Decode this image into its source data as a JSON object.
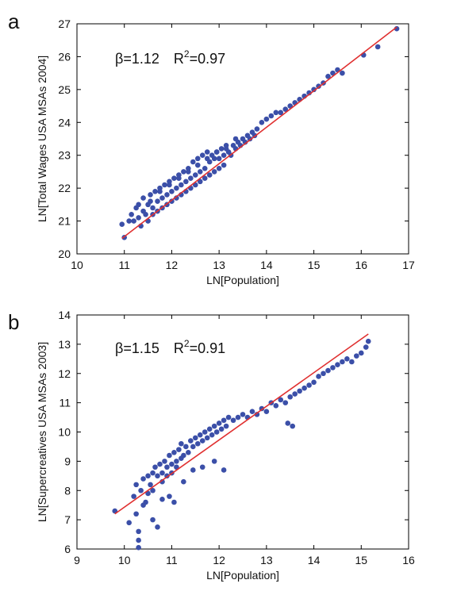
{
  "chart_data": [
    {
      "panel_label": "a",
      "type": "scatter",
      "xlabel": "LN[Population]",
      "ylabel": "LN[Total Wages USA MSAs 2004]",
      "xlim": [
        10,
        17
      ],
      "ylim": [
        20,
        27
      ],
      "xticks": [
        "10",
        "11",
        "12",
        "13",
        "14",
        "15",
        "16",
        "17"
      ],
      "yticks": [
        "20",
        "21",
        "22",
        "23",
        "24",
        "25",
        "26",
        "27"
      ],
      "annotation": {
        "beta": "β=1.12",
        "r2_prefix": "R",
        "r2_sup": "2",
        "r2_value": "=0.97"
      },
      "point_color": "#3b4fa8",
      "fit_color": "#e03030",
      "fit": {
        "x": [
          10.95,
          16.75
        ],
        "y": [
          20.47,
          26.9
        ]
      },
      "grid": false,
      "x": [
        10.95,
        11.0,
        11.1,
        11.15,
        11.2,
        11.25,
        11.3,
        11.3,
        11.35,
        11.4,
        11.4,
        11.45,
        11.5,
        11.5,
        11.55,
        11.6,
        11.6,
        11.65,
        11.7,
        11.7,
        11.75,
        11.8,
        11.8,
        11.85,
        11.9,
        11.9,
        11.95,
        12.0,
        12.0,
        12.05,
        12.1,
        12.1,
        12.15,
        12.2,
        12.2,
        12.25,
        12.3,
        12.3,
        12.35,
        12.4,
        12.4,
        12.45,
        12.5,
        12.5,
        12.55,
        12.6,
        12.6,
        12.65,
        12.7,
        12.7,
        12.75,
        12.8,
        12.8,
        12.85,
        12.9,
        12.9,
        12.95,
        13.0,
        13.0,
        13.05,
        13.1,
        13.1,
        13.15,
        13.2,
        13.25,
        13.3,
        13.35,
        13.4,
        13.45,
        13.5,
        13.55,
        13.6,
        13.65,
        13.7,
        13.75,
        13.8,
        13.9,
        14.0,
        14.1,
        14.2,
        14.3,
        14.4,
        14.5,
        14.6,
        14.7,
        14.8,
        14.9,
        15.0,
        15.1,
        15.2,
        15.3,
        15.4,
        15.5,
        15.6,
        16.05,
        16.35,
        16.75,
        11.55,
        11.75,
        11.95,
        12.15,
        12.35,
        12.55,
        12.75,
        12.95,
        13.15,
        13.35
      ],
      "y": [
        20.9,
        20.5,
        21.0,
        21.2,
        21.0,
        21.4,
        21.1,
        21.5,
        20.85,
        21.3,
        21.7,
        21.2,
        21.5,
        21.0,
        21.8,
        21.4,
        21.2,
        21.9,
        21.6,
        21.3,
        22.0,
        21.7,
        21.4,
        22.1,
        21.8,
        21.5,
        22.2,
        21.9,
        21.6,
        22.3,
        22.0,
        21.7,
        22.4,
        22.1,
        21.8,
        22.5,
        22.2,
        21.9,
        22.6,
        22.3,
        22.0,
        22.8,
        22.4,
        22.1,
        22.9,
        22.5,
        22.2,
        23.0,
        22.6,
        22.3,
        23.1,
        22.8,
        22.4,
        23.0,
        22.9,
        22.5,
        23.1,
        22.9,
        22.6,
        23.2,
        23.0,
        22.7,
        23.2,
        23.1,
        23.0,
        23.3,
        23.2,
        23.4,
        23.3,
        23.5,
        23.4,
        23.6,
        23.5,
        23.7,
        23.6,
        23.8,
        24.0,
        24.1,
        24.2,
        24.3,
        24.3,
        24.4,
        24.5,
        24.6,
        24.7,
        24.8,
        24.9,
        25.0,
        25.1,
        25.2,
        25.4,
        25.5,
        25.6,
        25.5,
        26.05,
        26.3,
        26.85,
        21.6,
        21.9,
        22.1,
        22.3,
        22.5,
        22.7,
        22.9,
        23.1,
        23.3,
        23.5
      ]
    },
    {
      "panel_label": "b",
      "type": "scatter",
      "xlabel": "LN[Population]",
      "ylabel": "LN[Supercreatives USA MSAs 2003]",
      "xlim": [
        9,
        16
      ],
      "ylim": [
        6,
        14
      ],
      "xticks": [
        "9",
        "10",
        "11",
        "12",
        "13",
        "14",
        "15",
        "16"
      ],
      "yticks": [
        "6",
        "7",
        "8",
        "9",
        "10",
        "11",
        "12",
        "13",
        "14"
      ],
      "annotation": {
        "beta": "β=1.15",
        "r2_prefix": "R",
        "r2_sup": "2",
        "r2_value": "=0.91"
      },
      "point_color": "#3b4fa8",
      "fit_color": "#e03030",
      "fit": {
        "x": [
          9.8,
          15.15
        ],
        "y": [
          7.2,
          13.35
        ]
      },
      "grid": false,
      "x": [
        9.8,
        10.1,
        10.2,
        10.25,
        10.3,
        10.3,
        10.35,
        10.4,
        10.45,
        10.5,
        10.5,
        10.55,
        10.6,
        10.6,
        10.65,
        10.7,
        10.7,
        10.75,
        10.8,
        10.8,
        10.85,
        10.9,
        10.9,
        10.95,
        11.0,
        11.0,
        11.05,
        11.1,
        11.1,
        11.15,
        11.2,
        11.2,
        11.25,
        11.3,
        11.35,
        11.4,
        11.45,
        11.5,
        11.55,
        11.6,
        11.65,
        11.7,
        11.75,
        11.8,
        11.85,
        11.9,
        11.95,
        12.0,
        12.05,
        12.1,
        12.15,
        12.2,
        12.3,
        12.4,
        12.5,
        12.6,
        12.7,
        12.8,
        12.9,
        13.0,
        13.1,
        13.2,
        13.3,
        13.4,
        13.5,
        13.6,
        13.7,
        13.8,
        13.9,
        14.0,
        14.1,
        14.2,
        14.3,
        14.4,
        14.5,
        14.6,
        14.7,
        14.8,
        14.9,
        15.0,
        15.1,
        15.15,
        10.25,
        10.4,
        10.6,
        10.8,
        10.95,
        11.25,
        11.45,
        11.65,
        11.9,
        12.1,
        13.45,
        13.55,
        10.3,
        11.05
      ],
      "y": [
        7.3,
        6.9,
        7.8,
        8.2,
        6.3,
        6.05,
        8.0,
        8.4,
        7.6,
        8.5,
        7.9,
        8.2,
        8.6,
        8.0,
        8.8,
        8.5,
        6.75,
        8.9,
        8.6,
        8.3,
        9.0,
        8.8,
        8.5,
        9.2,
        8.9,
        8.6,
        9.3,
        9.0,
        8.8,
        9.4,
        9.1,
        9.6,
        9.2,
        9.5,
        9.3,
        9.7,
        9.5,
        9.8,
        9.6,
        9.9,
        9.7,
        10.0,
        9.8,
        10.1,
        9.9,
        10.2,
        10.0,
        10.3,
        10.1,
        10.4,
        10.2,
        10.5,
        10.4,
        10.5,
        10.6,
        10.5,
        10.7,
        10.6,
        10.8,
        10.7,
        11.0,
        10.9,
        11.1,
        11.0,
        11.2,
        11.3,
        11.4,
        11.5,
        11.6,
        11.7,
        11.9,
        12.0,
        12.1,
        12.2,
        12.3,
        12.4,
        12.5,
        12.4,
        12.6,
        12.7,
        12.9,
        13.1,
        7.2,
        7.5,
        7.0,
        7.7,
        7.8,
        8.3,
        8.7,
        8.8,
        9.0,
        8.7,
        10.3,
        10.2,
        6.6,
        7.6
      ]
    }
  ]
}
